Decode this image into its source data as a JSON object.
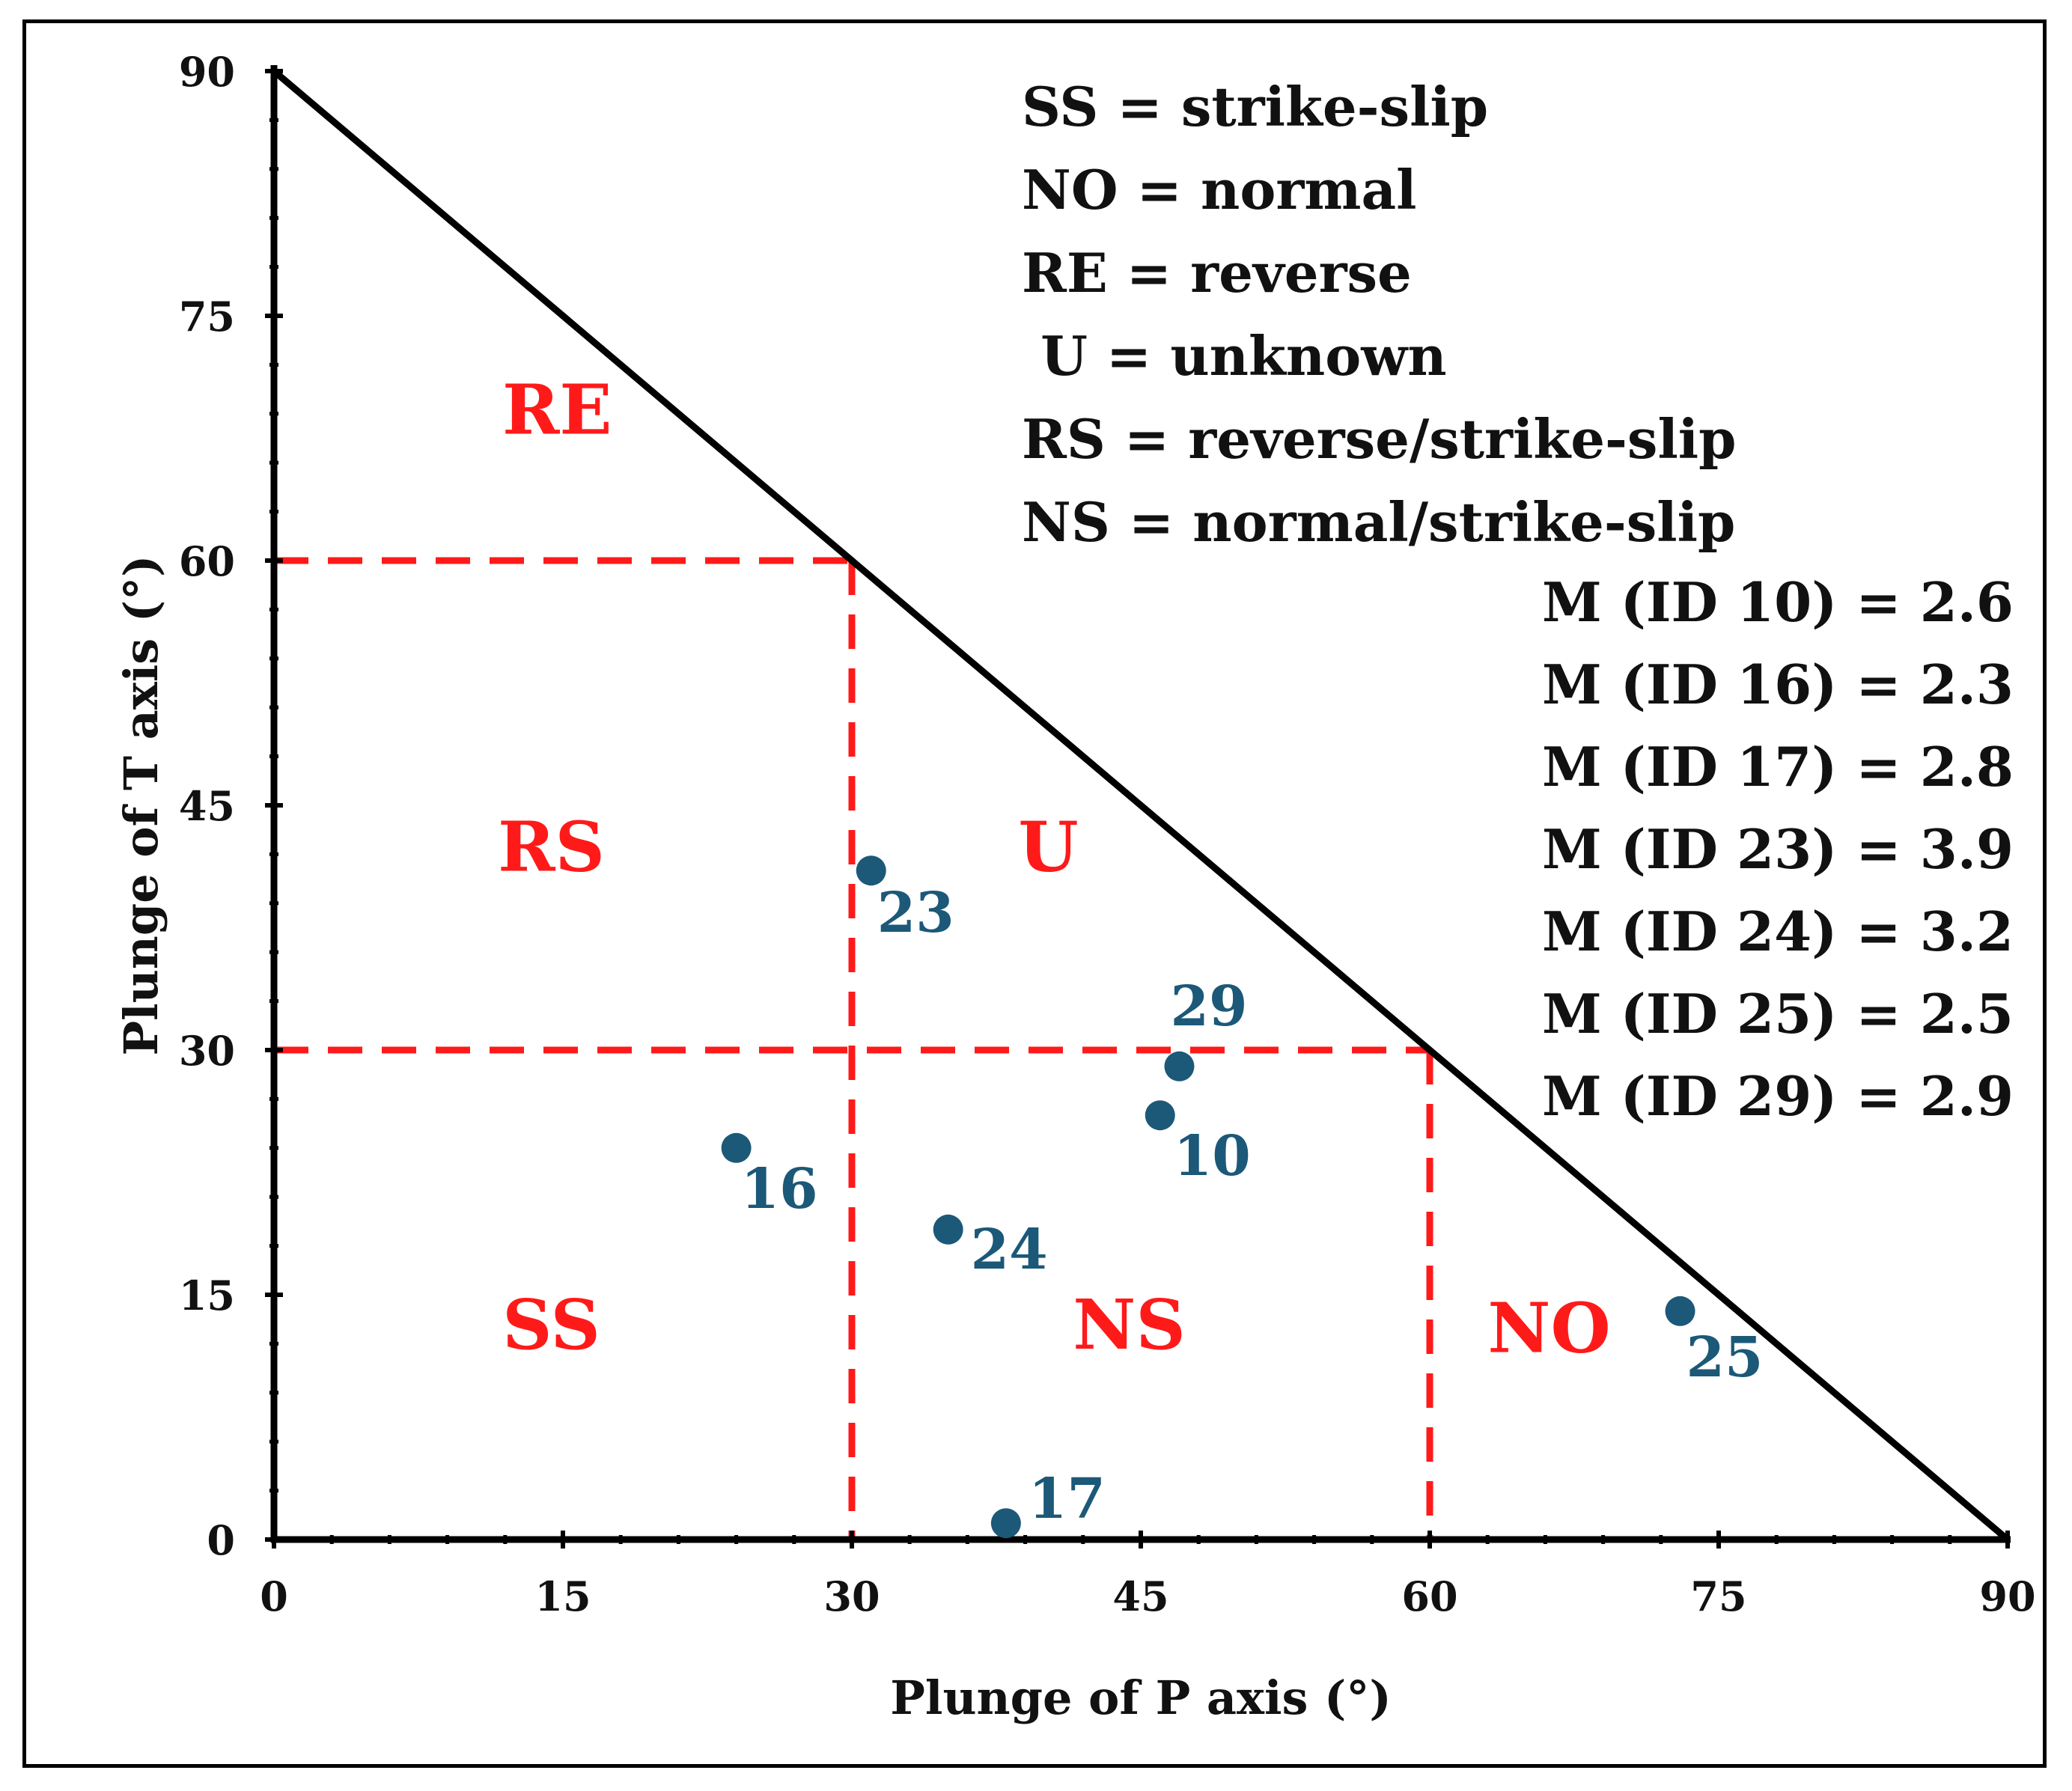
{
  "chart_data": {
    "type": "scatter",
    "title": "",
    "xlabel": "Plunge of P axis (°)",
    "ylabel": "Plunge of T axis (°)",
    "xlim": [
      0,
      90
    ],
    "ylim": [
      0,
      90
    ],
    "xticks": [
      "0",
      "15",
      "30",
      "45",
      "60",
      "75",
      "90"
    ],
    "yticks": [
      "0",
      "15",
      "30",
      "45",
      "60",
      "75",
      "90"
    ],
    "tick_values": [
      0,
      15,
      30,
      45,
      60,
      75,
      90
    ],
    "boundary_line": {
      "from": [
        0,
        90
      ],
      "to": [
        90,
        0
      ],
      "color": "#000000"
    },
    "region_lines": [
      {
        "from": [
          0,
          60
        ],
        "to": [
          30,
          60
        ]
      },
      {
        "from": [
          30,
          60
        ],
        "to": [
          30,
          0
        ]
      },
      {
        "from": [
          0,
          30
        ],
        "to": [
          60,
          30
        ]
      },
      {
        "from": [
          60,
          30
        ],
        "to": [
          60,
          0
        ]
      }
    ],
    "regions": [
      {
        "label": "RE",
        "x": 14.7,
        "y": 69.3
      },
      {
        "label": "RS",
        "x": 14.4,
        "y": 42.5
      },
      {
        "label": "U",
        "x": 40.2,
        "y": 42.5
      },
      {
        "label": "SS",
        "x": 14.4,
        "y": 13.2
      },
      {
        "label": "NS",
        "x": 44.4,
        "y": 13.2
      },
      {
        "label": "NO",
        "x": 66.2,
        "y": 13.0
      }
    ],
    "points": [
      {
        "id": "23",
        "x": 31,
        "y": 41
      },
      {
        "id": "29",
        "x": 47,
        "y": 29
      },
      {
        "id": "10",
        "x": 46,
        "y": 26
      },
      {
        "id": "16",
        "x": 24,
        "y": 24
      },
      {
        "id": "24",
        "x": 35,
        "y": 19
      },
      {
        "id": "25",
        "x": 73,
        "y": 14
      },
      {
        "id": "17",
        "x": 38,
        "y": 1
      }
    ],
    "legend": [
      "SS = strike-slip",
      "NO = normal",
      "RE = reverse",
      " U = unknown",
      "RS = reverse/strike-slip",
      "NS = normal/strike-slip"
    ],
    "magnitudes": [
      "M (ID 10) = 2.6",
      "M (ID 16) = 2.3",
      "M (ID 17) = 2.8",
      "M (ID 23) = 3.9",
      "M (ID 24) = 3.2",
      "M (ID 25) = 2.5",
      "M (ID 29) = 2.9"
    ],
    "colors": {
      "axis": "#000000",
      "region_lines": "#ff1a1a",
      "region_labels": "#ff1a1a",
      "points": "#1c5878",
      "point_labels": "#1c5878"
    }
  }
}
